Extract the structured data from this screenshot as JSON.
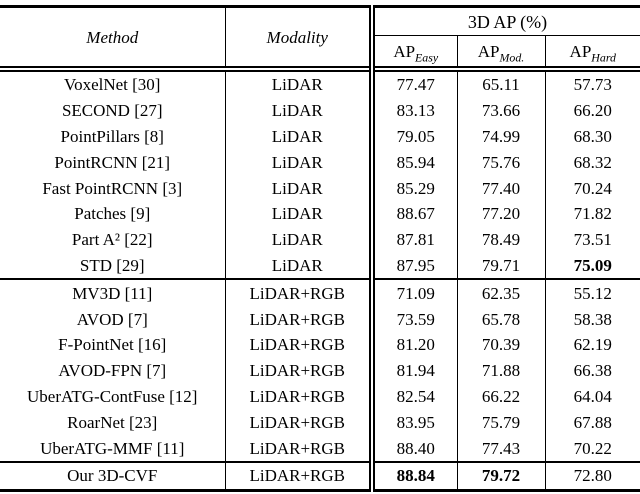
{
  "table": {
    "header": {
      "method": "Method",
      "modality": "Modality",
      "group": "3D AP (%)",
      "ap_prefix": "AP",
      "sub_easy": "Easy",
      "sub_mod": "Mod.",
      "sub_hard": "Hard"
    },
    "rows": [
      {
        "method": "VoxelNet [30]",
        "modality": "LiDAR",
        "easy": "77.47",
        "mod": "65.11",
        "hard": "57.73"
      },
      {
        "method": "SECOND [27]",
        "modality": "LiDAR",
        "easy": "83.13",
        "mod": "73.66",
        "hard": "66.20"
      },
      {
        "method": "PointPillars [8]",
        "modality": "LiDAR",
        "easy": "79.05",
        "mod": "74.99",
        "hard": "68.30"
      },
      {
        "method": "PointRCNN [21]",
        "modality": "LiDAR",
        "easy": "85.94",
        "mod": "75.76",
        "hard": "68.32"
      },
      {
        "method": "Fast PointRCNN [3]",
        "modality": "LiDAR",
        "easy": "85.29",
        "mod": "77.40",
        "hard": "70.24"
      },
      {
        "method": "Patches [9]",
        "modality": "LiDAR",
        "easy": "88.67",
        "mod": "77.20",
        "hard": "71.82"
      },
      {
        "method": "Part A² [22]",
        "modality": "LiDAR",
        "easy": "87.81",
        "mod": "78.49",
        "hard": "73.51"
      },
      {
        "method": "STD [29]",
        "modality": "LiDAR",
        "easy": "87.95",
        "mod": "79.71",
        "hard": "75.09"
      },
      {
        "method": "MV3D [11]",
        "modality": "LiDAR+RGB",
        "easy": "71.09",
        "mod": "62.35",
        "hard": "55.12"
      },
      {
        "method": "AVOD [7]",
        "modality": "LiDAR+RGB",
        "easy": "73.59",
        "mod": "65.78",
        "hard": "58.38"
      },
      {
        "method": "F-PointNet [16]",
        "modality": "LiDAR+RGB",
        "easy": "81.20",
        "mod": "70.39",
        "hard": "62.19"
      },
      {
        "method": "AVOD-FPN [7]",
        "modality": "LiDAR+RGB",
        "easy": "81.94",
        "mod": "71.88",
        "hard": "66.38"
      },
      {
        "method": "UberATG-ContFuse [12]",
        "modality": "LiDAR+RGB",
        "easy": "82.54",
        "mod": "66.22",
        "hard": "64.04"
      },
      {
        "method": "RoarNet [23]",
        "modality": "LiDAR+RGB",
        "easy": "83.95",
        "mod": "75.79",
        "hard": "67.88"
      },
      {
        "method": "UberATG-MMF [11]",
        "modality": "LiDAR+RGB",
        "easy": "88.40",
        "mod": "77.43",
        "hard": "70.22"
      },
      {
        "method": "Our 3D-CVF",
        "modality": "LiDAR+RGB",
        "easy": "88.84",
        "mod": "79.72",
        "hard": "72.80"
      }
    ]
  }
}
